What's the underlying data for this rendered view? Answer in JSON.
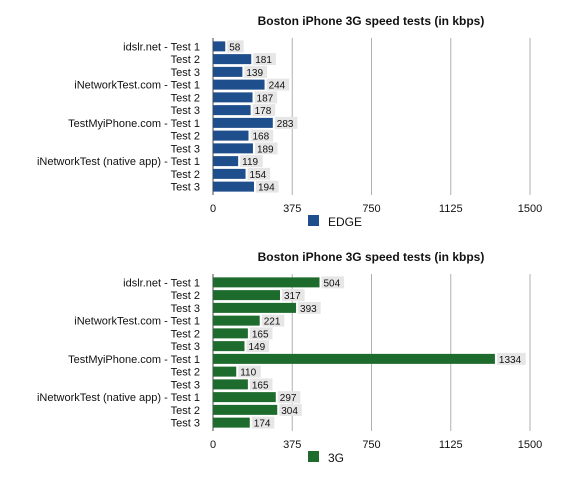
{
  "chart_data": [
    {
      "type": "bar",
      "orientation": "horizontal",
      "title": "Boston iPhone 3G speed tests (in kbps)",
      "categories": [
        "idslr.net - Test 1",
        "Test 2",
        "Test 3",
        "iNetworkTest.com - Test 1",
        "Test 2",
        "Test 3",
        "TestMyiPhone.com - Test 1",
        "Test 2",
        "Test 3",
        "iNetworkTest (native app) - Test 1",
        "Test 2",
        "Test 3"
      ],
      "series": [
        {
          "name": "EDGE",
          "color": "#1f4e8c",
          "values": [
            58,
            181,
            139,
            244,
            187,
            178,
            283,
            168,
            189,
            119,
            154,
            194
          ]
        }
      ],
      "xlim": [
        0,
        1500
      ],
      "xticks": [
        0,
        375,
        750,
        1125,
        1500
      ],
      "grid": true,
      "legend_position": "bottom"
    },
    {
      "type": "bar",
      "orientation": "horizontal",
      "title": "Boston iPhone 3G speed tests (in kbps)",
      "categories": [
        "idslr.net - Test 1",
        "Test 2",
        "Test 3",
        "iNetworkTest.com - Test 1",
        "Test 2",
        "Test 3",
        "TestMyiPhone.com - Test 1",
        "Test 2",
        "Test 3",
        "iNetworkTest (native app) - Test 1",
        "Test 2",
        "Test 3"
      ],
      "series": [
        {
          "name": "3G",
          "color": "#1e6b2e",
          "values": [
            504,
            317,
            393,
            221,
            165,
            149,
            1334,
            110,
            165,
            297,
            304,
            174
          ]
        }
      ],
      "xlim": [
        0,
        1500
      ],
      "xticks": [
        0,
        375,
        750,
        1125,
        1500
      ],
      "grid": true,
      "legend_position": "bottom"
    }
  ]
}
